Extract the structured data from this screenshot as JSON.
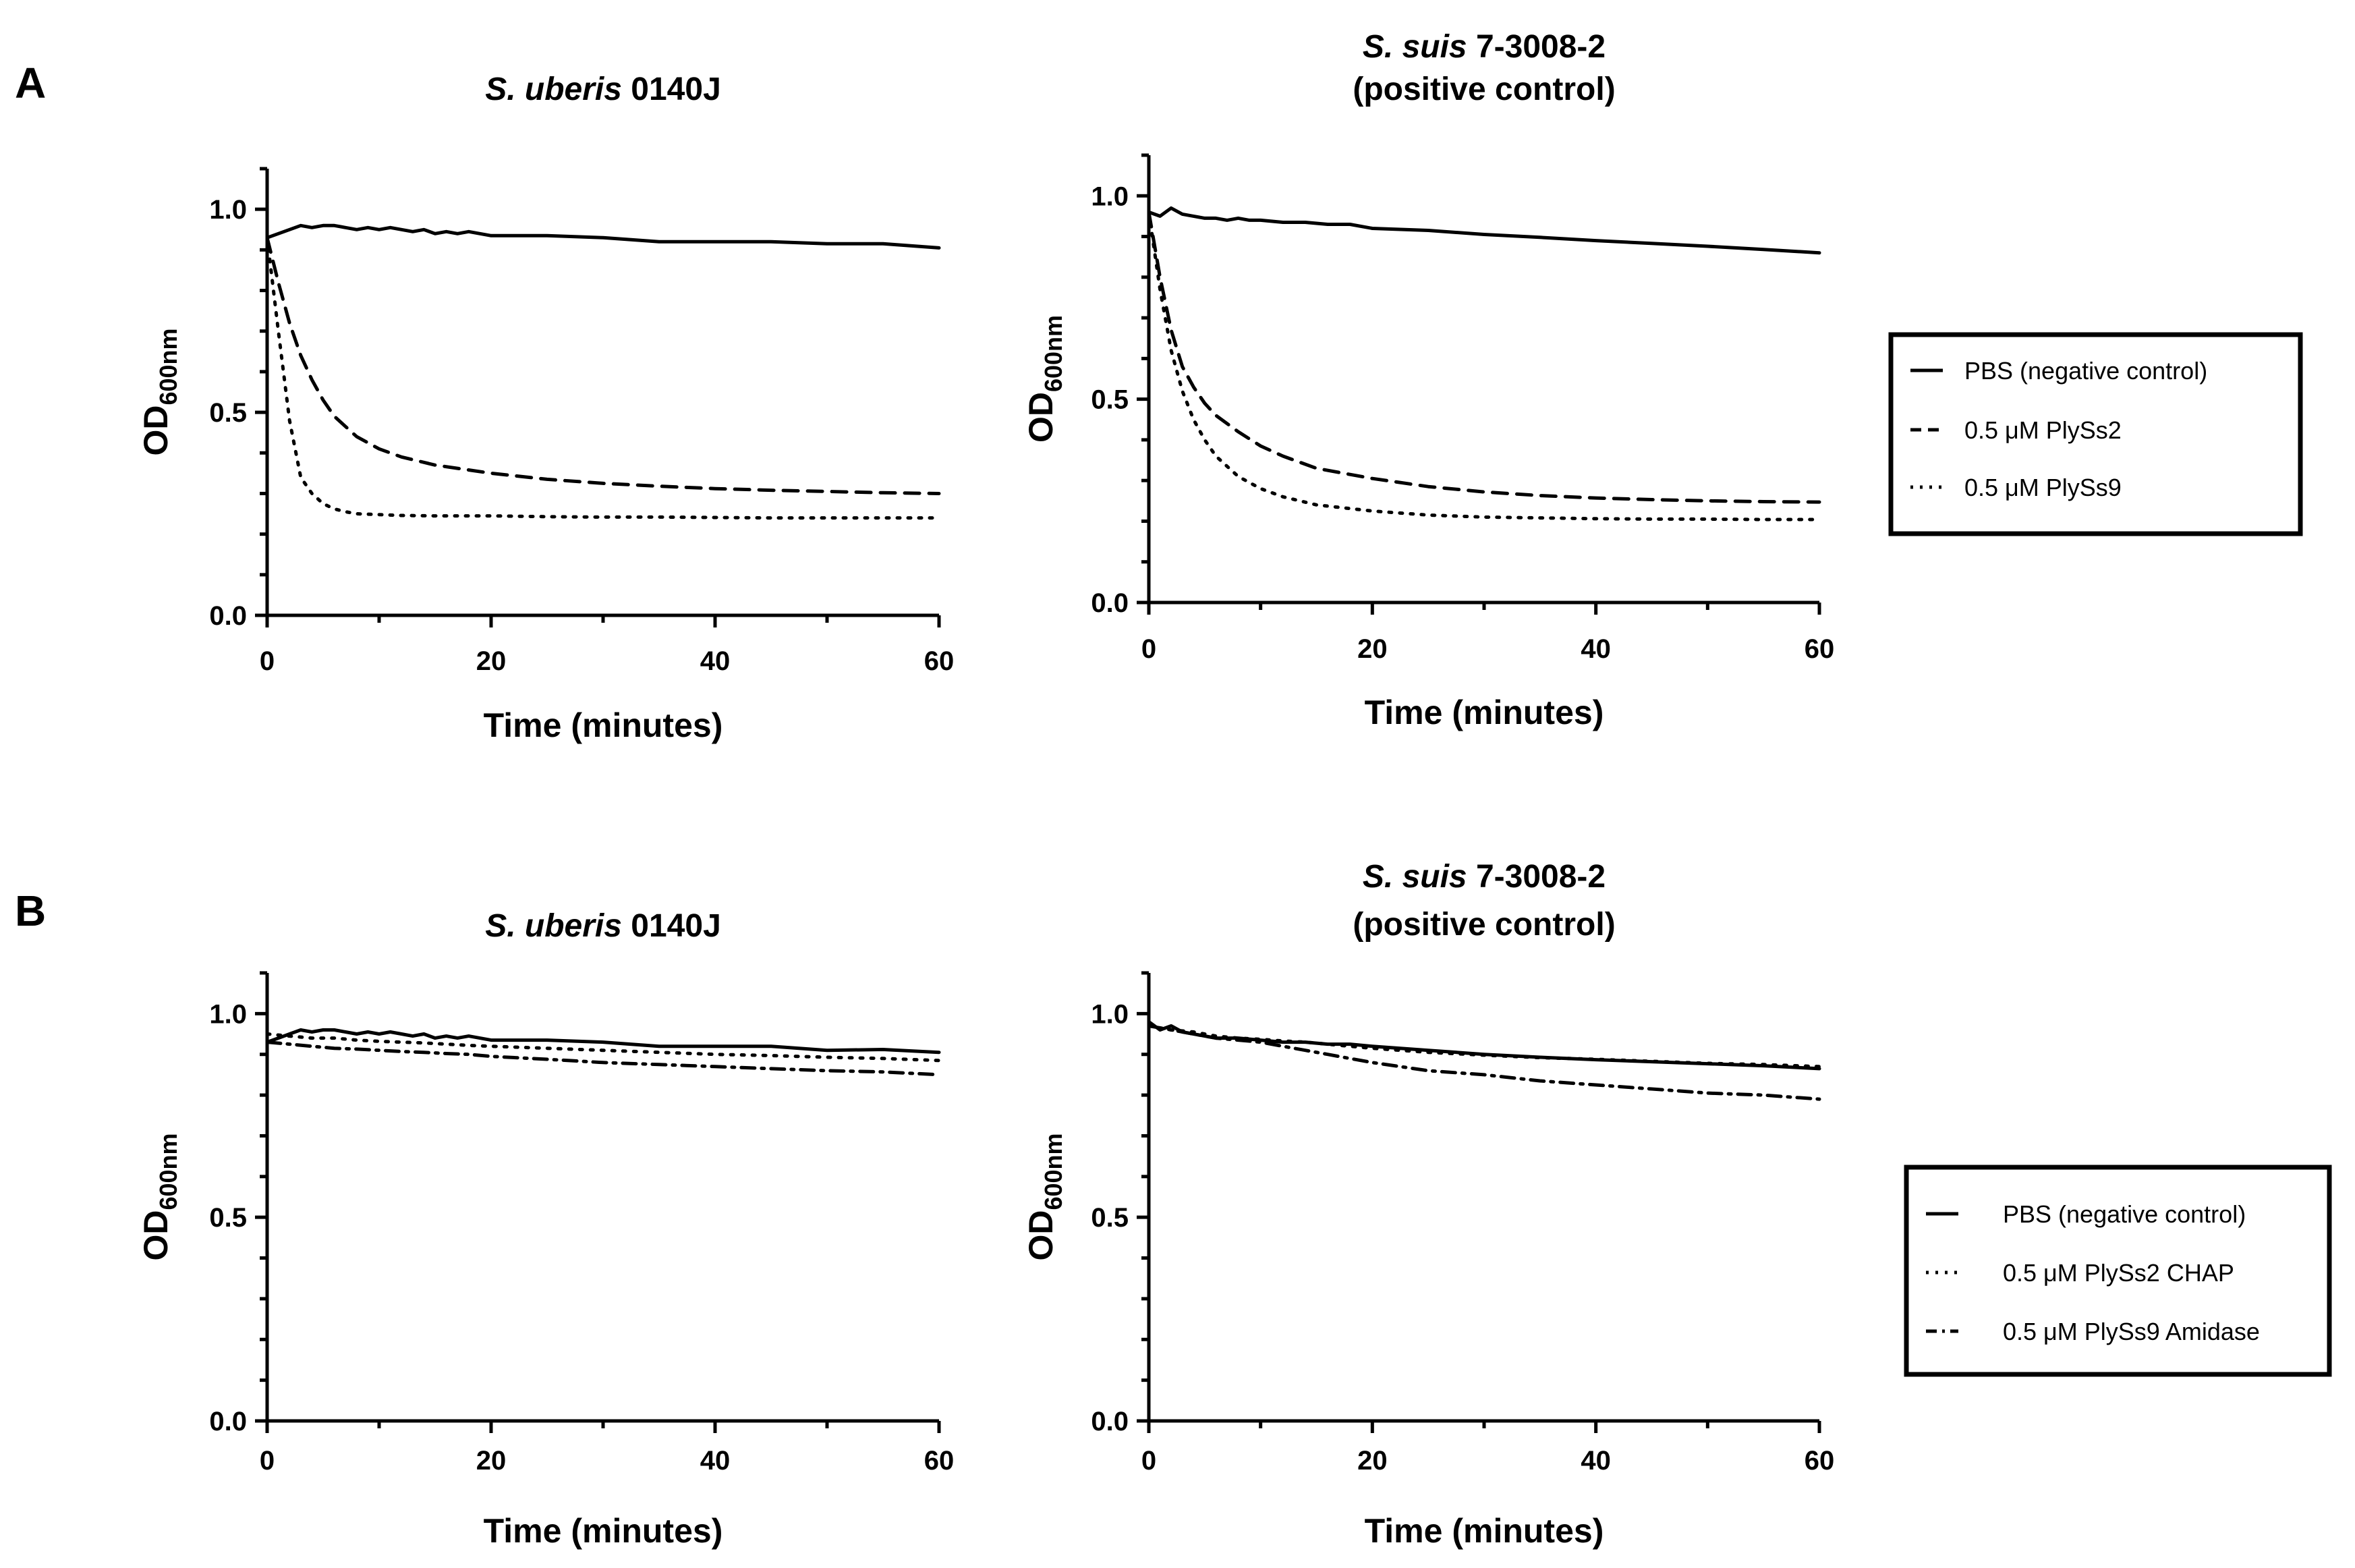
{
  "panel_labels": [
    "A",
    "B"
  ],
  "chart_data": [
    {
      "panel": "A",
      "type": "line",
      "title_italic": "S. uberis",
      "title_rest": " 0140J",
      "title_line2": "",
      "xlabel": "Time (minutes)",
      "ylabel_main": "OD",
      "ylabel_sub": "600nm",
      "xlim": [
        0,
        60
      ],
      "ylim": [
        0,
        1.1
      ],
      "xticks": [
        "0",
        "20",
        "40",
        "60"
      ],
      "yticks": [
        "0.0",
        "0.5",
        "1.0"
      ],
      "series": [
        {
          "name": "PBS (negative control)",
          "style": "solid",
          "x": [
            0,
            1,
            2,
            3,
            4,
            5,
            6,
            7,
            8,
            9,
            10,
            11,
            12,
            13,
            14,
            15,
            16,
            17,
            18,
            19,
            20,
            25,
            30,
            35,
            40,
            45,
            50,
            55,
            60
          ],
          "y": [
            0.93,
            0.94,
            0.95,
            0.96,
            0.955,
            0.96,
            0.96,
            0.955,
            0.95,
            0.955,
            0.95,
            0.955,
            0.95,
            0.945,
            0.95,
            0.94,
            0.945,
            0.94,
            0.945,
            0.94,
            0.935,
            0.935,
            0.93,
            0.92,
            0.92,
            0.92,
            0.915,
            0.915,
            0.905
          ]
        },
        {
          "name": "0.5 μM PlySs2",
          "style": "dashed",
          "x": [
            0,
            1,
            2,
            3,
            4,
            5,
            6,
            8,
            10,
            12,
            15,
            20,
            25,
            30,
            35,
            40,
            45,
            50,
            55,
            60
          ],
          "y": [
            0.93,
            0.82,
            0.72,
            0.64,
            0.58,
            0.53,
            0.49,
            0.44,
            0.41,
            0.39,
            0.37,
            0.35,
            0.335,
            0.325,
            0.318,
            0.312,
            0.308,
            0.305,
            0.302,
            0.3
          ]
        },
        {
          "name": "0.5 μM PlySs9",
          "style": "dotted",
          "x": [
            0,
            1,
            2,
            3,
            4,
            5,
            6,
            7,
            8,
            10,
            12,
            15,
            20,
            25,
            30,
            35,
            40,
            45,
            50,
            55,
            60
          ],
          "y": [
            0.93,
            0.7,
            0.48,
            0.34,
            0.3,
            0.275,
            0.262,
            0.255,
            0.25,
            0.248,
            0.246,
            0.245,
            0.245,
            0.243,
            0.242,
            0.242,
            0.241,
            0.24,
            0.24,
            0.24,
            0.24
          ]
        }
      ]
    },
    {
      "panel": "A",
      "type": "line",
      "title_italic": "S. suis",
      "title_rest": " 7-3008-2",
      "title_line2": "(positive control)",
      "xlabel": "Time (minutes)",
      "ylabel_main": "OD",
      "ylabel_sub": "600nm",
      "xlim": [
        0,
        60
      ],
      "ylim": [
        0,
        1.1
      ],
      "xticks": [
        "0",
        "20",
        "40",
        "60"
      ],
      "yticks": [
        "0.0",
        "0.5",
        "1.0"
      ],
      "series": [
        {
          "name": "PBS (negative control)",
          "style": "solid",
          "x": [
            0,
            1,
            2,
            3,
            4,
            5,
            6,
            7,
            8,
            9,
            10,
            12,
            14,
            16,
            18,
            20,
            25,
            30,
            35,
            40,
            45,
            50,
            55,
            60
          ],
          "y": [
            0.96,
            0.95,
            0.97,
            0.955,
            0.95,
            0.945,
            0.945,
            0.94,
            0.945,
            0.94,
            0.94,
            0.935,
            0.935,
            0.93,
            0.93,
            0.92,
            0.915,
            0.905,
            0.898,
            0.89,
            0.883,
            0.876,
            0.868,
            0.86
          ]
        },
        {
          "name": "0.5 μM PlySs2",
          "style": "dashed",
          "x": [
            0,
            1,
            2,
            3,
            4,
            5,
            6,
            8,
            10,
            12,
            15,
            20,
            25,
            30,
            35,
            40,
            45,
            50,
            55,
            60
          ],
          "y": [
            0.96,
            0.8,
            0.67,
            0.58,
            0.53,
            0.49,
            0.46,
            0.42,
            0.385,
            0.36,
            0.33,
            0.305,
            0.285,
            0.272,
            0.263,
            0.257,
            0.253,
            0.25,
            0.248,
            0.247
          ]
        },
        {
          "name": "0.5 μM PlySs9",
          "style": "dotted",
          "x": [
            0,
            1,
            2,
            3,
            4,
            5,
            6,
            8,
            10,
            12,
            15,
            20,
            25,
            30,
            35,
            40,
            45,
            50,
            55,
            60
          ],
          "y": [
            0.96,
            0.77,
            0.62,
            0.52,
            0.45,
            0.4,
            0.36,
            0.31,
            0.28,
            0.26,
            0.24,
            0.225,
            0.215,
            0.21,
            0.208,
            0.206,
            0.205,
            0.205,
            0.204,
            0.204
          ]
        }
      ]
    },
    {
      "panel": "B",
      "type": "line",
      "title_italic": "S. uberis",
      "title_rest": " 0140J",
      "title_line2": "",
      "xlabel": "Time (minutes)",
      "ylabel_main": "OD",
      "ylabel_sub": "600nm",
      "xlim": [
        0,
        60
      ],
      "ylim": [
        0,
        1.1
      ],
      "xticks": [
        "0",
        "20",
        "40",
        "60"
      ],
      "yticks": [
        "0.0",
        "0.5",
        "1.0"
      ],
      "series": [
        {
          "name": "PBS (negative control)",
          "style": "solid",
          "x": [
            0,
            1,
            2,
            3,
            4,
            5,
            6,
            7,
            8,
            9,
            10,
            11,
            12,
            13,
            14,
            15,
            16,
            17,
            18,
            19,
            20,
            25,
            30,
            35,
            40,
            45,
            50,
            55,
            60
          ],
          "y": [
            0.93,
            0.94,
            0.95,
            0.96,
            0.955,
            0.96,
            0.96,
            0.955,
            0.95,
            0.955,
            0.95,
            0.955,
            0.95,
            0.945,
            0.95,
            0.94,
            0.945,
            0.94,
            0.945,
            0.94,
            0.935,
            0.935,
            0.93,
            0.92,
            0.92,
            0.92,
            0.91,
            0.912,
            0.905
          ]
        },
        {
          "name": "0.5 μM PlySs2 CHAP",
          "style": "dotted",
          "x": [
            0,
            2,
            4,
            6,
            8,
            10,
            12,
            14,
            16,
            18,
            20,
            25,
            30,
            35,
            40,
            45,
            50,
            55,
            60
          ],
          "y": [
            0.95,
            0.945,
            0.94,
            0.94,
            0.935,
            0.932,
            0.93,
            0.928,
            0.925,
            0.922,
            0.92,
            0.915,
            0.91,
            0.905,
            0.9,
            0.897,
            0.893,
            0.89,
            0.885
          ]
        },
        {
          "name": "0.5 μM PlySs9 Amidase",
          "style": "dashdot",
          "x": [
            0,
            2,
            4,
            6,
            8,
            10,
            12,
            14,
            16,
            18,
            20,
            25,
            30,
            35,
            40,
            45,
            50,
            55,
            60
          ],
          "y": [
            0.93,
            0.925,
            0.92,
            0.915,
            0.913,
            0.91,
            0.907,
            0.905,
            0.902,
            0.9,
            0.895,
            0.888,
            0.88,
            0.875,
            0.87,
            0.865,
            0.86,
            0.857,
            0.85
          ]
        }
      ]
    },
    {
      "panel": "B",
      "type": "line",
      "title_italic": "S. suis",
      "title_rest": " 7-3008-2",
      "title_line2": "(positive control)",
      "xlabel": "Time (minutes)",
      "ylabel_main": "OD",
      "ylabel_sub": "600nm",
      "xlim": [
        0,
        60
      ],
      "ylim": [
        0,
        1.1
      ],
      "xticks": [
        "0",
        "20",
        "40",
        "60"
      ],
      "yticks": [
        "0.0",
        "0.5",
        "1.0"
      ],
      "series": [
        {
          "name": "PBS (negative control)",
          "style": "solid",
          "x": [
            0,
            1,
            2,
            3,
            4,
            5,
            6,
            8,
            10,
            12,
            14,
            16,
            18,
            20,
            25,
            30,
            35,
            40,
            45,
            50,
            55,
            60
          ],
          "y": [
            0.98,
            0.96,
            0.97,
            0.955,
            0.95,
            0.945,
            0.94,
            0.94,
            0.935,
            0.93,
            0.93,
            0.925,
            0.925,
            0.92,
            0.91,
            0.9,
            0.893,
            0.887,
            0.882,
            0.877,
            0.872,
            0.865
          ]
        },
        {
          "name": "0.5 μM PlySs2 CHAP",
          "style": "dotted",
          "x": [
            0,
            2,
            4,
            6,
            8,
            10,
            12,
            14,
            16,
            18,
            20,
            25,
            30,
            35,
            40,
            45,
            50,
            55,
            60
          ],
          "y": [
            0.97,
            0.96,
            0.955,
            0.945,
            0.94,
            0.937,
            0.933,
            0.93,
            0.925,
            0.92,
            0.915,
            0.905,
            0.898,
            0.892,
            0.888,
            0.883,
            0.878,
            0.875,
            0.87
          ]
        },
        {
          "name": "0.5 μM PlySs9 Amidase",
          "style": "dashdot",
          "x": [
            0,
            2,
            4,
            6,
            8,
            10,
            12,
            14,
            16,
            18,
            20,
            25,
            30,
            35,
            40,
            45,
            50,
            55,
            60
          ],
          "y": [
            0.97,
            0.96,
            0.95,
            0.94,
            0.935,
            0.93,
            0.92,
            0.91,
            0.9,
            0.89,
            0.88,
            0.86,
            0.85,
            0.835,
            0.825,
            0.815,
            0.805,
            0.8,
            0.79
          ]
        }
      ]
    }
  ],
  "legends": [
    {
      "panel": "A",
      "entries": [
        {
          "label": "PBS (negative control)",
          "style": "solid"
        },
        {
          "label": "0.5 μM PlySs2",
          "style": "dashed"
        },
        {
          "label": "0.5 μM PlySs9",
          "style": "dotted"
        }
      ]
    },
    {
      "panel": "B",
      "entries": [
        {
          "label": "PBS (negative control)",
          "style": "solid"
        },
        {
          "label": "0.5 μM PlySs2 CHAP",
          "style": "dotted"
        },
        {
          "label": "0.5 μM PlySs9 Amidase",
          "style": "dashdot"
        }
      ]
    }
  ]
}
